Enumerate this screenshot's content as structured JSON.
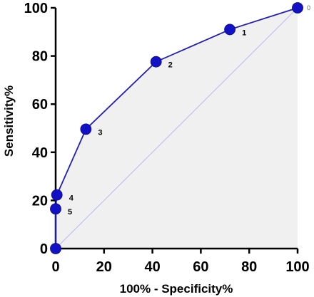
{
  "chart_data": {
    "type": "line",
    "xlabel": "100% - Specificity%",
    "ylabel": "Sensitivity%",
    "xlim": [
      0,
      100
    ],
    "ylim": [
      0,
      100
    ],
    "x_ticks": [
      "0",
      "20",
      "40",
      "60",
      "80",
      "100"
    ],
    "y_ticks": [
      "0",
      "20",
      "40",
      "60",
      "80",
      "100"
    ],
    "grid": false,
    "reference_line": "diagonal",
    "area_fill": true,
    "series": [
      {
        "points": [
          {
            "x": 0,
            "y": 0,
            "label": ""
          },
          {
            "x": 0,
            "y": 16.5,
            "label": "5"
          },
          {
            "x": 0.5,
            "y": 22.3,
            "label": "4"
          },
          {
            "x": 12.5,
            "y": 49.6,
            "label": "3"
          },
          {
            "x": 41.5,
            "y": 77.6,
            "label": "2"
          },
          {
            "x": 72,
            "y": 91,
            "label": "1"
          },
          {
            "x": 100,
            "y": 100,
            "label": "0"
          }
        ]
      }
    ],
    "colors": {
      "line": "#1f1fb8",
      "marker": "#1212c4",
      "diagonal": "#b8b8ee",
      "fill": "#f0f0f0",
      "axis": "#000000"
    }
  }
}
